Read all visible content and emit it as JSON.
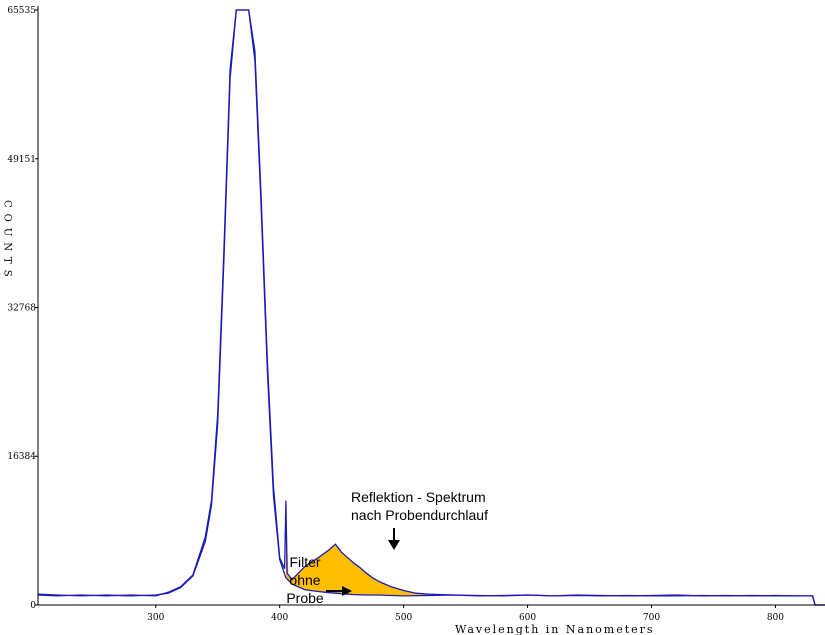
{
  "chart_data": {
    "type": "line",
    "xlabel": "Wavelength in Nanometers",
    "ylabel": "COUNTS",
    "xlim": [
      205,
      840
    ],
    "ylim": [
      0,
      65535
    ],
    "x_ticks": [
      300,
      400,
      500,
      600,
      700,
      800
    ],
    "y_ticks": [
      0,
      16384,
      32768,
      49151,
      65535
    ],
    "colors": {
      "line": "#1a1ab8",
      "fill": "#ffbf00",
      "axis": "#000000"
    },
    "series": [
      {
        "x": [
          205,
          220,
          240,
          260,
          280,
          300,
          310,
          320,
          330,
          340,
          345,
          350,
          355,
          360,
          365,
          368,
          372,
          375,
          380,
          385,
          390,
          395,
          400,
          405,
          410,
          420,
          430,
          440,
          445,
          450,
          460,
          470,
          480,
          490,
          500,
          520,
          540,
          560,
          580,
          600,
          620,
          640,
          660,
          680,
          700,
          720,
          740,
          760,
          780,
          800,
          820,
          830,
          832,
          840
        ],
        "y": [
          1200,
          1100,
          1000,
          1100,
          1000,
          1100,
          1300,
          1900,
          3200,
          7000,
          11000,
          20000,
          38000,
          58000,
          65535,
          65535,
          65535,
          65535,
          60000,
          44000,
          26000,
          12000,
          5000,
          3000,
          2300,
          1700,
          1500,
          1350,
          1300,
          1250,
          1150,
          1100,
          1100,
          1050,
          1000,
          1050,
          1100,
          1000,
          1050,
          1100,
          1000,
          1050,
          1000,
          1050,
          1000,
          1000,
          1050,
          1000,
          1050,
          1000,
          1000,
          1000,
          0,
          0
        ]
      },
      {
        "x": [
          205,
          220,
          240,
          260,
          280,
          300,
          310,
          320,
          330,
          340,
          345,
          350,
          355,
          360,
          365,
          368,
          372,
          375,
          380,
          385,
          390,
          395,
          400,
          404,
          405,
          406,
          410,
          415,
          420,
          425,
          430,
          435,
          440,
          445,
          450,
          455,
          460,
          465,
          470,
          475,
          480,
          485,
          490,
          500,
          510,
          520,
          540,
          560,
          580,
          600,
          620,
          640,
          660,
          680,
          700,
          720,
          740,
          760,
          780,
          800,
          820,
          830,
          832,
          840
        ],
        "y": [
          1100,
          1000,
          1100,
          1000,
          1100,
          1000,
          1400,
          2000,
          3300,
          7500,
          11500,
          21000,
          39000,
          59000,
          65535,
          65535,
          65535,
          65535,
          61000,
          45000,
          27000,
          13000,
          5200,
          4000,
          11500,
          3500,
          2800,
          3500,
          4200,
          4700,
          5100,
          5600,
          6100,
          6700,
          5800,
          5200,
          4600,
          4100,
          3500,
          3000,
          2600,
          2300,
          2000,
          1600,
          1300,
          1200,
          1100,
          1050,
          1000,
          1100,
          1000,
          1100,
          1050,
          1000,
          1050,
          1100,
          1000,
          1050,
          1000,
          1050,
          1000,
          1000,
          0,
          0
        ]
      }
    ],
    "annotations": [
      {
        "lines": [
          "Reflektion - Spektrum",
          "nach Probendurchlauf"
        ]
      },
      {
        "lines": [
          "Filter",
          "ohne",
          "Probe"
        ]
      }
    ]
  }
}
